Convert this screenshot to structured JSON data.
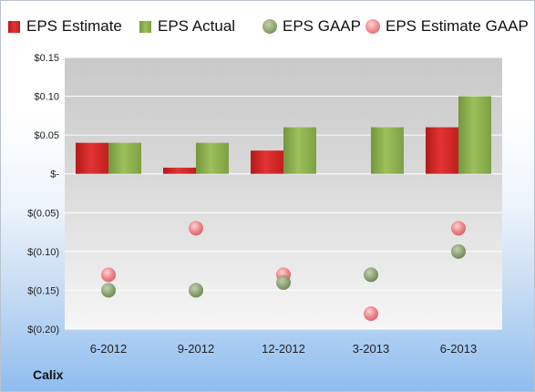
{
  "company": "Calix",
  "chart_data": {
    "type": "bar",
    "title": "",
    "xlabel": "",
    "ylabel": "",
    "categories": [
      "6-2012",
      "9-2012",
      "12-2012",
      "3-2013",
      "6-2013"
    ],
    "ylim": [
      -0.2,
      0.15
    ],
    "yticks": [
      0.15,
      0.1,
      0.05,
      0.0,
      -0.05,
      -0.1,
      -0.15,
      -0.2
    ],
    "ytick_labels": [
      "$0.15",
      "$0.10",
      "$0.05",
      "$-",
      "$(0.05)",
      "$(0.10)",
      "$(0.15)",
      "$(0.20)"
    ],
    "grid": true,
    "legend_position": "top",
    "series": [
      {
        "name": "EPS Estimate",
        "kind": "bar",
        "color": "#d42a2a",
        "values": [
          0.04,
          0.008,
          0.03,
          null,
          0.06
        ]
      },
      {
        "name": "EPS Actual",
        "kind": "bar",
        "color": "#8db051",
        "values": [
          0.04,
          0.04,
          0.06,
          0.06,
          0.1
        ]
      },
      {
        "name": "EPS GAAP",
        "kind": "marker",
        "color": "#8aa070",
        "values": [
          -0.15,
          -0.15,
          -0.14,
          -0.13,
          -0.1
        ]
      },
      {
        "name": "EPS Estimate GAAP",
        "kind": "marker",
        "color": "#ee8086",
        "values": [
          -0.13,
          -0.07,
          -0.13,
          -0.18,
          -0.07
        ]
      }
    ]
  }
}
